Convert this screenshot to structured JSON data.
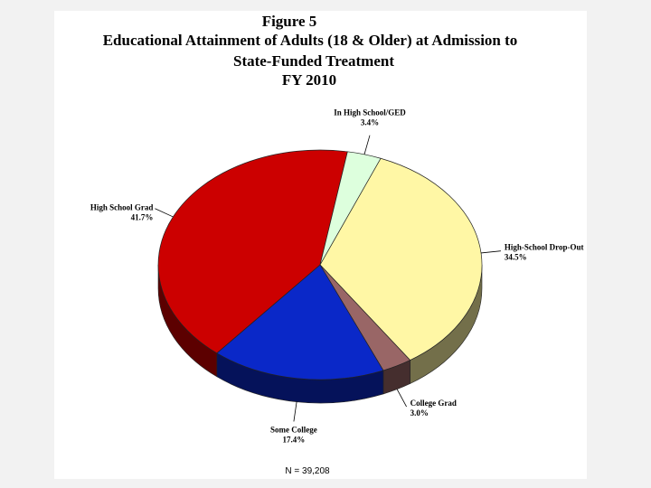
{
  "chart_data": {
    "type": "pie",
    "title": [
      "Figure 5",
      "Educational Attainment of Adults (18 & Older) at Admission to",
      "State-Funded Treatment",
      "FY 2010"
    ],
    "slices": [
      {
        "name": "High-School Drop-Out",
        "value": 34.5,
        "value_label": "34.5%",
        "color": "#FFF7A5"
      },
      {
        "name": "College Grad",
        "value": 3.0,
        "value_label": "3.0%",
        "color": "#996666"
      },
      {
        "name": "Some College",
        "value": 17.4,
        "value_label": "17.4%",
        "color": "#0A28C8"
      },
      {
        "name": "High School Grad",
        "value": 41.7,
        "value_label": "41.7%",
        "color": "#CC0000"
      },
      {
        "name": "In High School/GED",
        "value": 3.4,
        "value_label": "3.4%",
        "color": "#DDFFDD"
      }
    ],
    "style": "3d-tilted",
    "note": "N = 39,208"
  }
}
